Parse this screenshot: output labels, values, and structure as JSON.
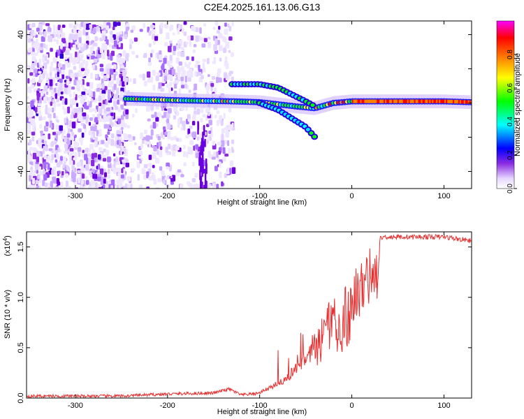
{
  "title": "C2E4.2025.161.13.06.G13",
  "chart_data": [
    {
      "type": "heatmap",
      "xlabel": "Height of straight line (km)",
      "ylabel": "Frequency (Hz)",
      "xlim": [
        -353,
        130
      ],
      "ylim": [
        -50,
        48
      ],
      "xticks": [
        -300,
        -200,
        -100,
        0,
        100
      ],
      "yticks": [
        -40,
        -20,
        0,
        20,
        40
      ],
      "colorbar": {
        "label": "Normalized spectral amplitude",
        "ticks": [
          0.0,
          0.2,
          0.4,
          0.6,
          0.8
        ],
        "range": [
          0,
          1
        ],
        "colors": [
          "#ffffff",
          "#e6d8ff",
          "#8a2be2",
          "#0000ff",
          "#00ffff",
          "#00ff00",
          "#ffff00",
          "#ff8000",
          "#ff0000",
          "#ff00ff"
        ]
      },
      "features": {
        "noise_region_x": [
          -353,
          -130
        ],
        "carrier_line": [
          [
            -245,
            2.5
          ],
          [
            -180,
            1.5
          ],
          [
            -130,
            1
          ],
          [
            -100,
            0.5
          ],
          [
            -60,
            -2
          ],
          [
            -40,
            -3
          ],
          [
            -20,
            0
          ],
          [
            0,
            1
          ],
          [
            50,
            1
          ],
          [
            100,
            1
          ],
          [
            130,
            0.5
          ]
        ],
        "upper_branch": [
          [
            -130,
            11
          ],
          [
            -100,
            11
          ],
          [
            -80,
            9
          ],
          [
            -65,
            5
          ],
          [
            -50,
            1
          ],
          [
            -40,
            -2
          ]
        ],
        "lower_branch": [
          [
            -100,
            0
          ],
          [
            -80,
            -4
          ],
          [
            -65,
            -9
          ],
          [
            -50,
            -14
          ],
          [
            -40,
            -20
          ]
        ]
      }
    },
    {
      "type": "line",
      "xlabel": "Height of straight line (km)",
      "ylabel": "SNR (10 * v/v)",
      "y_multiplier": "(x10",
      "y_exponent": "4",
      "xlim": [
        -353,
        130
      ],
      "ylim": [
        0,
        1.65
      ],
      "xticks": [
        -300,
        -200,
        -100,
        0,
        100
      ],
      "yticks": [
        "0.0",
        "0.5",
        "1.0",
        "1.5"
      ],
      "ytick_values": [
        0,
        0.5,
        1.0,
        1.5
      ],
      "color": "#e83030",
      "envelope": [
        [
          -353,
          0.02
        ],
        [
          -250,
          0.02
        ],
        [
          -225,
          0.03
        ],
        [
          -200,
          0.04
        ],
        [
          -150,
          0.05
        ],
        [
          -133,
          0.09
        ],
        [
          -120,
          0.03
        ],
        [
          -100,
          0.05
        ],
        [
          -90,
          0.12
        ],
        [
          -75,
          0.22
        ],
        [
          -60,
          0.35
        ],
        [
          -45,
          0.55
        ],
        [
          -35,
          0.75
        ],
        [
          -25,
          1.0
        ],
        [
          -15,
          1.15
        ],
        [
          -5,
          1.1
        ],
        [
          5,
          1.25
        ],
        [
          15,
          1.45
        ],
        [
          25,
          1.55
        ],
        [
          35,
          1.6
        ],
        [
          60,
          1.6
        ],
        [
          100,
          1.6
        ],
        [
          130,
          1.56
        ]
      ]
    }
  ]
}
